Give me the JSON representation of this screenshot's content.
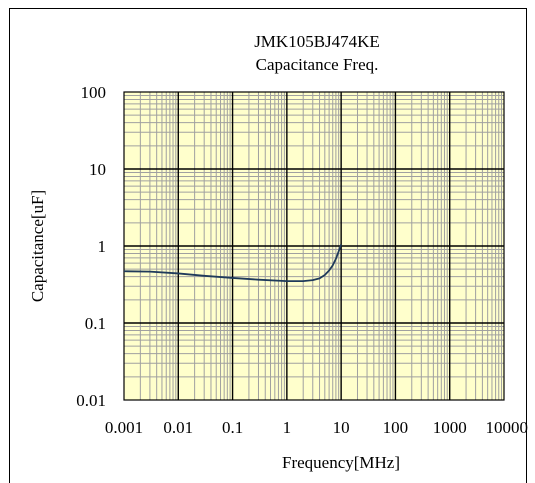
{
  "chart_data": {
    "type": "line",
    "title": "JMK105BJ474KE",
    "subtitle": "Capacitance Freq.",
    "xlabel": "Frequency[MHz]",
    "ylabel": "Capacitance[uF]",
    "xscale": "log",
    "yscale": "log",
    "xlim": [
      0.001,
      10000
    ],
    "ylim": [
      0.01,
      100
    ],
    "x_tick_labels": [
      "0.001",
      "0.01",
      "0.1",
      "1",
      "10",
      "100",
      "1000",
      "10000"
    ],
    "y_tick_labels": [
      "100",
      "10",
      "1",
      "0.1",
      "0.01"
    ],
    "grid": true,
    "legend": "none",
    "series": [
      {
        "x": [
          0.001,
          0.003,
          0.01,
          0.03,
          0.1,
          0.3,
          1,
          2,
          3,
          4,
          5,
          6,
          7,
          8,
          9,
          10
        ],
        "y": [
          0.47,
          0.465,
          0.44,
          0.41,
          0.385,
          0.365,
          0.35,
          0.35,
          0.36,
          0.38,
          0.42,
          0.48,
          0.56,
          0.68,
          0.85,
          1.05
        ]
      }
    ],
    "colors": {
      "plot_background": "#FFFFCC",
      "line": "#1F3A5A",
      "minor_grid": "#A0A0A0",
      "major_grid": "#000000"
    }
  }
}
